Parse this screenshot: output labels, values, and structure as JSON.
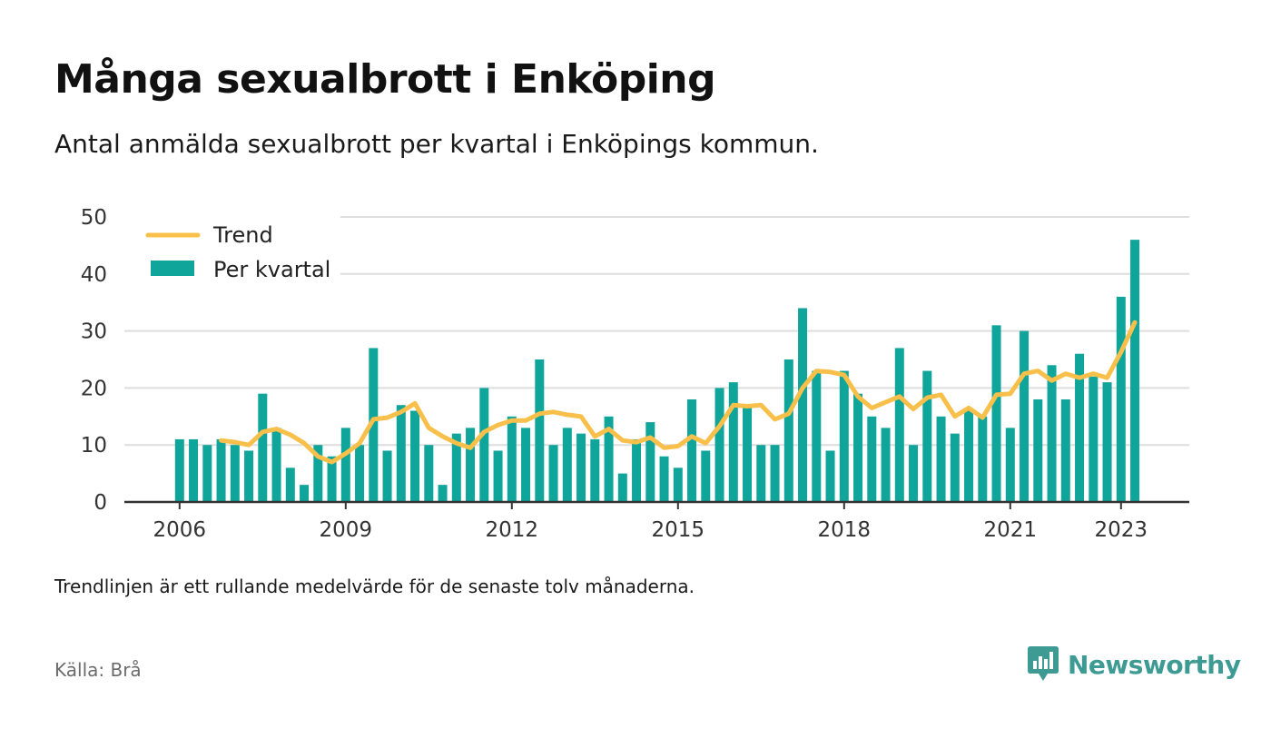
{
  "title": "Många sexualbrott i Enköping",
  "subtitle": "Antal anmälda sexualbrott per kvartal i Enköpings kommun.",
  "note": "Trendlinjen är ett rullande medelvärde för de senaste tolv månaderna.",
  "source": "Källa: Brå",
  "brand": {
    "name": "Newsworthy",
    "icon": "newsworthy-logo-icon",
    "color": "#3d9b93"
  },
  "colors": {
    "bars": "#0fa59a",
    "trend": "#f8c04a",
    "grid": "#dedede",
    "axis": "#333333"
  },
  "chart_data": {
    "type": "bar",
    "x_start": "2006 Q1",
    "quarters_per_year": 4,
    "xticks": [
      "2006",
      "2009",
      "2012",
      "2015",
      "2018",
      "2021",
      "2023"
    ],
    "yticks": [
      "0",
      "10",
      "20",
      "30",
      "40",
      "50"
    ],
    "ylim": [
      0,
      50
    ],
    "grid": true,
    "legend_placement": "top-left",
    "series": [
      {
        "name": "Per kvartal",
        "kind": "bar",
        "values": [
          11,
          11,
          10,
          11,
          10,
          9,
          19,
          13,
          6,
          3,
          10,
          8,
          13,
          10,
          27,
          9,
          17,
          16,
          10,
          3,
          12,
          13,
          20,
          9,
          15,
          13,
          25,
          10,
          13,
          12,
          11,
          15,
          5,
          11,
          14,
          8,
          6,
          18,
          9,
          20,
          21,
          17,
          10,
          10,
          25,
          34,
          23,
          9,
          23,
          19,
          15,
          13,
          27,
          10,
          23,
          15,
          12,
          16,
          15,
          31,
          13,
          30,
          18,
          24,
          18,
          26,
          22,
          21,
          36,
          46
        ]
      },
      {
        "name": "Trend",
        "kind": "line",
        "values": [
          null,
          null,
          null,
          10.8,
          10.5,
          10,
          12.3,
          12.8,
          11.8,
          10.3,
          8,
          7,
          8.5,
          10.3,
          14.5,
          14.8,
          15.8,
          17.3,
          13,
          11.5,
          10.3,
          9.5,
          12.3,
          13.5,
          14.3,
          14.3,
          15.5,
          15.8,
          15.3,
          15,
          11.5,
          12.8,
          10.8,
          10.5,
          11.3,
          9.5,
          9.8,
          11.5,
          10.3,
          13.3,
          17,
          16.8,
          17,
          14.5,
          15.5,
          20,
          23,
          22.8,
          22.3,
          18.5,
          16.5,
          17.5,
          18.5,
          16.3,
          18.3,
          18.8,
          15,
          16.5,
          14.8,
          18.8,
          19,
          22.5,
          23,
          21.3,
          22.5,
          21.8,
          22.5,
          21.8,
          26.3,
          31.5
        ]
      }
    ]
  }
}
